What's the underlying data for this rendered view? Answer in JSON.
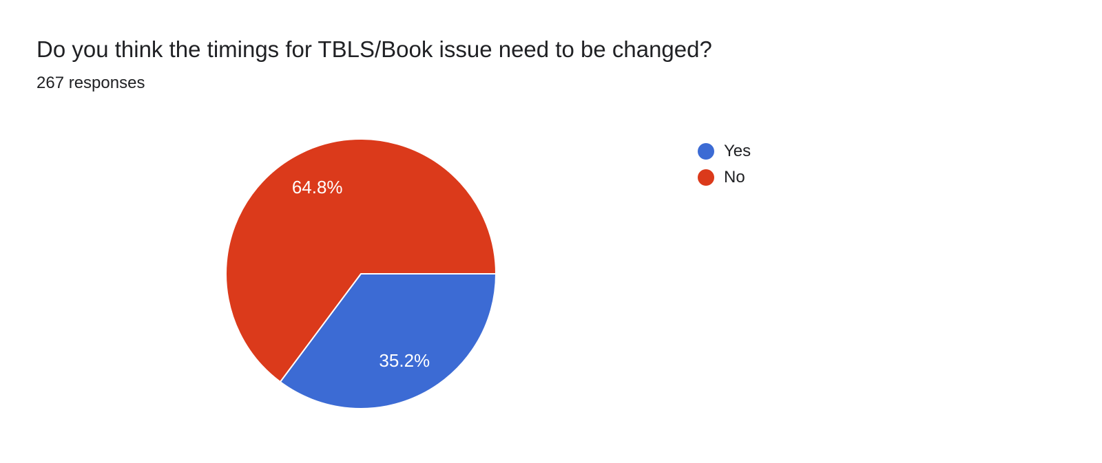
{
  "chart": {
    "title": "Do you think the timings for TBLS/Book issue need to be changed?",
    "responses_label": "267 responses"
  },
  "chart_data": {
    "type": "pie",
    "title": "Do you think the timings for TBLS/Book issue need to be changed?",
    "subtitle": "267 responses",
    "total_responses": 267,
    "categories": [
      "Yes",
      "No"
    ],
    "values": [
      35.2,
      64.8
    ],
    "slices": [
      {
        "label": "Yes",
        "value_pct": 35.2,
        "data_label": "35.2%",
        "color": "#3c6bd4"
      },
      {
        "label": "No",
        "value_pct": 64.8,
        "data_label": "64.8%",
        "color": "#db3a1b"
      }
    ],
    "legend_position": "right",
    "start_angle_deg": 0,
    "direction": "clockwise",
    "label_color": "#ffffff",
    "separator_color": "#ffffff",
    "label_radius_fraction": 0.72
  }
}
